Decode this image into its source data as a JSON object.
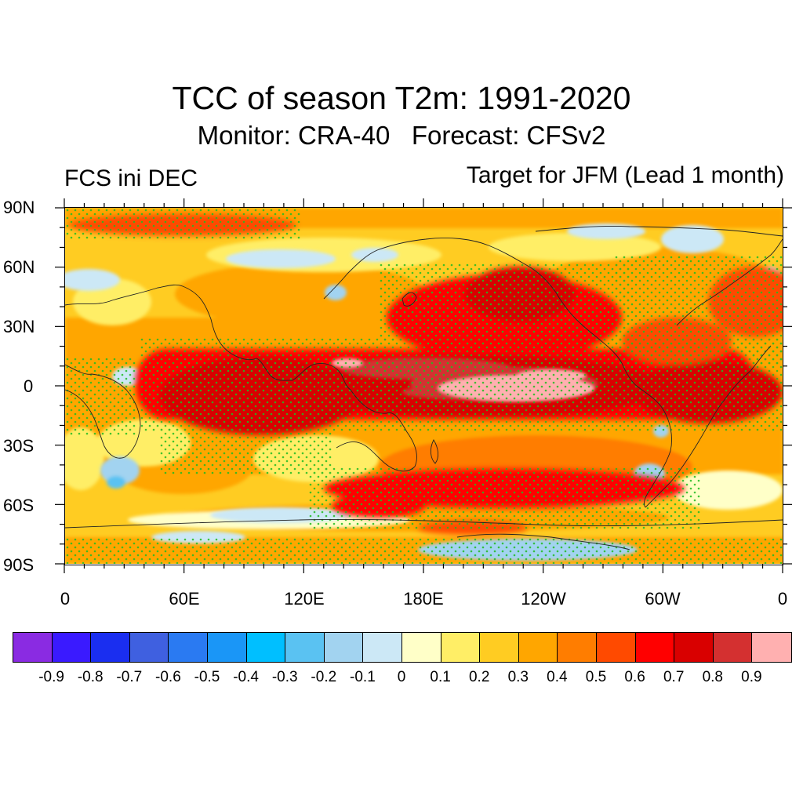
{
  "title": "TCC of season T2m: 1991-2020",
  "subtitle": "Monitor: CRA-40   Forecast: CFSv2",
  "left_label": "FCS ini DEC",
  "right_label": "Target for JFM (Lead 1 month)",
  "map": {
    "projection": "cylindrical-equidistant",
    "lon_range": [
      0,
      360
    ],
    "lat_range": [
      -90,
      90
    ],
    "y_ticks": [
      {
        "lat": 90,
        "label": "90N"
      },
      {
        "lat": 60,
        "label": "60N"
      },
      {
        "lat": 30,
        "label": "30N"
      },
      {
        "lat": 0,
        "label": "0"
      },
      {
        "lat": -30,
        "label": "30S"
      },
      {
        "lat": -60,
        "label": "60S"
      },
      {
        "lat": -90,
        "label": "90S"
      }
    ],
    "x_ticks": [
      {
        "lon": 0,
        "label": "0"
      },
      {
        "lon": 60,
        "label": "60E"
      },
      {
        "lon": 120,
        "label": "120E"
      },
      {
        "lon": 180,
        "label": "180E"
      },
      {
        "lon": 240,
        "label": "120W"
      },
      {
        "lon": 300,
        "label": "60W"
      },
      {
        "lon": 360,
        "label": "0"
      }
    ],
    "stipple_color": "#22bb22"
  },
  "colorbar": {
    "colors": [
      "#8a2be2",
      "#3a1aff",
      "#1a2ef0",
      "#3f60e0",
      "#2a7af2",
      "#1a96f7",
      "#00bfff",
      "#5ac2f2",
      "#a2d3f0",
      "#cce8f6",
      "#ffffc8",
      "#ffee66",
      "#ffcc22",
      "#ffa600",
      "#ff7d00",
      "#ff4a00",
      "#ff0000",
      "#d90000",
      "#d43030",
      "#ffb0b0"
    ],
    "labels": [
      "-0.9",
      "-0.8",
      "-0.7",
      "-0.6",
      "-0.5",
      "-0.4",
      "-0.3",
      "-0.2",
      "-0.1",
      "0",
      "0.1",
      "0.2",
      "0.3",
      "0.4",
      "0.5",
      "0.6",
      "0.7",
      "0.8",
      "0.9"
    ]
  }
}
